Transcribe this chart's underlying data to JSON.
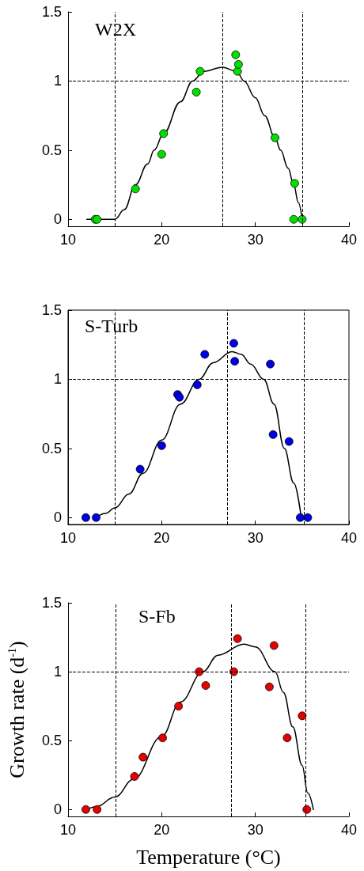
{
  "chart_data": [
    {
      "type": "scatter",
      "title": "W2X",
      "xlim": [
        10,
        40
      ],
      "ylim": [
        -0.05,
        1.5
      ],
      "xticks": [
        10,
        20,
        30,
        40
      ],
      "yticks": [
        0,
        0.5,
        1,
        1.5
      ],
      "marker": "circle",
      "ref_lines": [
        {
          "axis": "y",
          "value": 1,
          "color": "#000000",
          "line_style": "dashed"
        },
        {
          "axis": "x",
          "value": 15,
          "color": "#000000",
          "line_style": "dashed"
        },
        {
          "axis": "x",
          "value": 26.5,
          "color": "#000000",
          "line_style": "dashed"
        },
        {
          "axis": "x",
          "value": 35,
          "color": "#000000",
          "line_style": "dashed"
        }
      ],
      "series": [
        {
          "color": "#00e000",
          "x": [
            12.9,
            13.1,
            17.2,
            20.0,
            20.2,
            23.7,
            24.1,
            27.9,
            28.1,
            28.2,
            32.1,
            34.1,
            34.2,
            35.0
          ],
          "values": [
            0,
            0,
            0.22,
            0.47,
            0.62,
            0.92,
            1.07,
            1.19,
            1.07,
            1.12,
            0.59,
            0,
            0.26,
            0
          ]
        },
        {
          "type": "line",
          "color": "#000000",
          "marker": "none",
          "x": [
            12,
            15,
            16,
            17.2,
            18.5,
            19.2,
            20.2,
            22,
            23.3,
            24.5,
            26.5,
            28,
            28.8,
            30,
            31,
            32.1,
            32.7,
            33.5,
            34.1,
            34.6,
            35
          ],
          "values": [
            0,
            0,
            0.07,
            0.25,
            0.4,
            0.5,
            0.62,
            0.85,
            1.0,
            1.07,
            1.1,
            1.07,
            1.0,
            0.88,
            0.75,
            0.59,
            0.5,
            0.37,
            0.25,
            0.12,
            0
          ]
        }
      ]
    },
    {
      "type": "scatter",
      "title": "S-Turb",
      "xlim": [
        10,
        40
      ],
      "ylim": [
        -0.05,
        1.5
      ],
      "xticks": [
        10,
        20,
        30,
        40
      ],
      "yticks": [
        0,
        0.5,
        1,
        1.5
      ],
      "marker": "circle",
      "ref_lines": [
        {
          "axis": "y",
          "value": 1,
          "color": "#000000",
          "line_style": "dashed"
        },
        {
          "axis": "x",
          "value": 15,
          "color": "#000000",
          "line_style": "dashed"
        },
        {
          "axis": "x",
          "value": 27,
          "color": "#000000",
          "line_style": "dashed"
        },
        {
          "axis": "x",
          "value": 35.2,
          "color": "#000000",
          "line_style": "dashed"
        }
      ],
      "series": [
        {
          "color": "#0000e6",
          "x": [
            11.9,
            13.0,
            17.7,
            20.0,
            21.7,
            21.9,
            23.8,
            24.6,
            27.7,
            27.8,
            31.6,
            31.9,
            33.6,
            34.8,
            35.6
          ],
          "values": [
            0,
            0,
            0.35,
            0.52,
            0.89,
            0.87,
            0.96,
            1.18,
            1.26,
            1.13,
            1.11,
            0.6,
            0.55,
            0,
            0
          ]
        },
        {
          "type": "line",
          "color": "#000000",
          "marker": "none",
          "x": [
            13,
            14,
            15,
            16.5,
            18,
            20,
            22,
            24,
            25.5,
            27.5,
            28.5,
            29.5,
            30.9,
            32,
            33.1,
            34.1,
            34.9
          ],
          "values": [
            0,
            0.03,
            0.07,
            0.17,
            0.32,
            0.56,
            0.82,
            1.0,
            1.12,
            1.2,
            1.18,
            1.11,
            1.0,
            0.82,
            0.5,
            0.25,
            0
          ]
        }
      ]
    },
    {
      "type": "scatter",
      "title": "S-Fb",
      "xlabel": "Temperature (°C)",
      "ylabel": "Growth rate (d$^{-1}$)",
      "xlim": [
        10,
        40
      ],
      "ylim": [
        -0.05,
        1.5
      ],
      "xticks": [
        10,
        20,
        30,
        40
      ],
      "yticks": [
        0,
        0.5,
        1,
        1.5
      ],
      "marker": "circle",
      "ref_lines": [
        {
          "axis": "y",
          "value": 1,
          "color": "#000000",
          "line_style": "dashed"
        },
        {
          "axis": "x",
          "value": 15.1,
          "color": "#000000",
          "line_style": "dashed"
        },
        {
          "axis": "x",
          "value": 27.4,
          "color": "#000000",
          "line_style": "dashed"
        },
        {
          "axis": "x",
          "value": 35.4,
          "color": "#000000",
          "line_style": "dashed"
        }
      ],
      "series": [
        {
          "color": "#e60000",
          "x": [
            11.9,
            13.1,
            17.1,
            18.0,
            20.1,
            21.8,
            24.0,
            24.7,
            27.7,
            28.1,
            31.5,
            32.0,
            33.4,
            35.0,
            35.5
          ],
          "values": [
            0,
            0,
            0.24,
            0.38,
            0.52,
            0.75,
            1.0,
            0.9,
            1.0,
            1.24,
            0.89,
            1.19,
            0.52,
            0.68,
            0
          ]
        },
        {
          "type": "line",
          "color": "#000000",
          "marker": "none",
          "x": [
            12,
            13,
            15,
            17,
            20,
            22,
            24.4,
            26,
            28.8,
            30,
            32.1,
            33,
            34,
            35,
            35.6,
            36.2
          ],
          "values": [
            0,
            0.02,
            0.09,
            0.22,
            0.53,
            0.78,
            1.0,
            1.12,
            1.2,
            1.18,
            1.0,
            0.85,
            0.6,
            0.32,
            0.12,
            0
          ]
        }
      ]
    }
  ]
}
